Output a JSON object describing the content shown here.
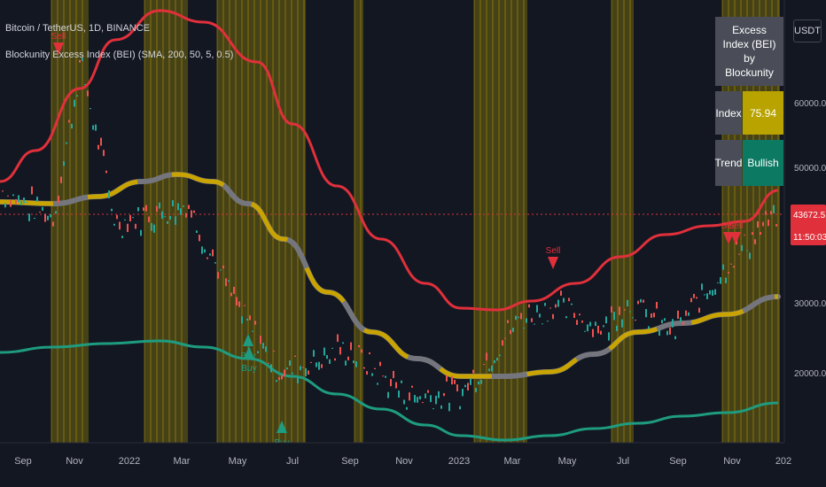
{
  "header": {
    "title": "Bitcoin / TetherUS, 1D, BINANCE",
    "indicator": "Blockunity Excess Index (BEI) (SMA, 200, 50, 5, 0.5)",
    "currency": "USDT"
  },
  "table": {
    "title": "Excess Index (BEI) by Blockunity",
    "index_label": "Index",
    "index_value": "75.94",
    "trend_label": "Trend",
    "trend_value": "Bullish"
  },
  "price_badge": {
    "price": "43672.51",
    "countdown": "11:50:03"
  },
  "signals": {
    "sell_label": "Sell",
    "buy_label": "Buy"
  },
  "colors": {
    "background": "#131722",
    "upper_band": "#e0303b",
    "lower_band": "#1e9c80",
    "middle_band": "#7a7a80",
    "excess_zone": "#b5a000",
    "sell": "#e0303b",
    "buy": "#1e9c80",
    "index_cell": "#b8a300",
    "trend_cell": "#0c7a63",
    "label_cell": "#4a4d57"
  },
  "chart_data": {
    "type": "line",
    "y_ticks": [
      "60000.00",
      "50000.00",
      "40000.00",
      "30000.00",
      "20000.00"
    ],
    "x_ticks": [
      "Sep",
      "Nov",
      "2022",
      "Mar",
      "May",
      "Jul",
      "Sep",
      "Nov",
      "2023",
      "Mar",
      "May",
      "Jul",
      "Sep",
      "Nov",
      "202"
    ],
    "series": [
      {
        "name": "Price",
        "x": [
          "2021-08",
          "2021-10",
          "2021-11",
          "2022-01",
          "2022-03",
          "2022-05",
          "2022-06",
          "2022-08",
          "2022-11",
          "2023-01",
          "2023-03",
          "2023-04",
          "2023-06",
          "2023-07",
          "2023-09",
          "2023-11",
          "2023-12"
        ],
        "values": [
          47000,
          43000,
          66000,
          42000,
          45000,
          30000,
          20000,
          23500,
          16500,
          17000,
          28000,
          30000,
          26500,
          30500,
          26000,
          37000,
          43672
        ]
      },
      {
        "name": "Upper band",
        "values": [
          54000,
          62000,
          70000,
          68000,
          66000,
          56000,
          46000,
          38000,
          29000,
          29000,
          30000,
          32000,
          35000,
          38000,
          40000,
          41000,
          45000
        ]
      },
      {
        "name": "Middle band",
        "values": [
          42000,
          42500,
          43500,
          46000,
          47000,
          45000,
          38000,
          31000,
          25000,
          24000,
          24000,
          25000,
          26000,
          27000,
          28000,
          29000,
          31500
        ]
      },
      {
        "name": "Lower band",
        "values": [
          17000,
          18000,
          18500,
          19500,
          20500,
          20000,
          15000,
          10000,
          6500,
          6000,
          7000,
          8000,
          9000,
          10000,
          11000,
          12500,
          15000
        ]
      }
    ],
    "sell_signals": [
      "2021-11",
      "2023-04",
      "2023-11",
      "2023-11",
      "2023-12"
    ],
    "buy_signals": [
      "2022-05",
      "2022-05",
      "2022-06"
    ]
  }
}
